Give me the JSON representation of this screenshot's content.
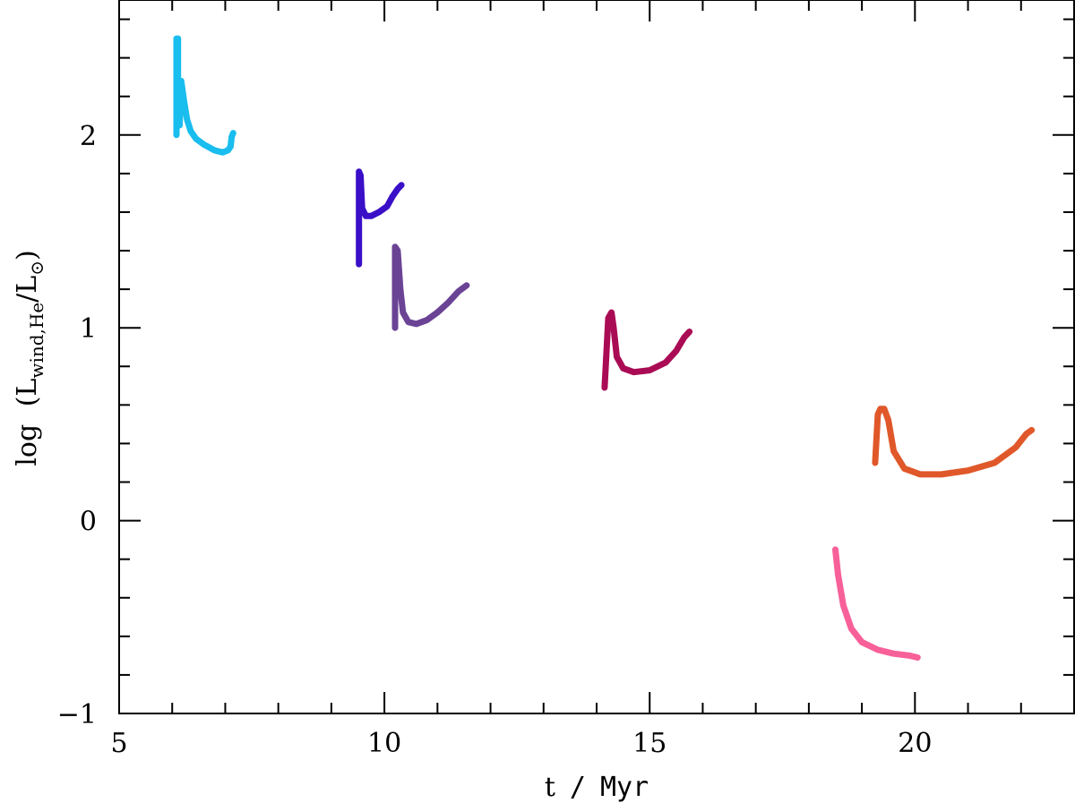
{
  "chart_data": {
    "type": "line",
    "xlabel": {
      "t": "t",
      "sep": "/",
      "unit": "Myr"
    },
    "ylabel": {
      "prefix": "log",
      "open": "(",
      "L1": "L",
      "sub1": "wind,He",
      "slash": "/",
      "L2": "L",
      "sub2": "⊙",
      "close": ")"
    },
    "xlim": [
      5,
      23
    ],
    "ylim": [
      -1,
      2.7
    ],
    "xticks_major": [
      5,
      10,
      15,
      20
    ],
    "xtick_labels": [
      "5",
      "10",
      "15",
      "20"
    ],
    "yticks_major": [
      -1,
      0,
      1,
      2
    ],
    "ytick_labels": [
      "−1",
      "0",
      "1",
      "2"
    ],
    "grid": false,
    "series": [
      {
        "color": "#19bdee",
        "x": [
          6.08,
          6.08,
          6.11,
          6.11,
          6.14,
          6.17,
          6.22,
          6.28,
          6.35,
          6.45,
          6.6,
          6.8,
          6.95,
          7.05,
          7.1,
          7.12,
          7.15
        ],
        "y": [
          2.0,
          2.5,
          2.5,
          2.15,
          2.05,
          2.28,
          2.18,
          2.08,
          2.02,
          1.98,
          1.95,
          1.92,
          1.91,
          1.92,
          1.94,
          1.99,
          2.01
        ]
      },
      {
        "color": "#3a0fc8",
        "x": [
          9.52,
          9.52,
          9.55,
          9.58,
          9.65,
          9.75,
          9.9,
          10.05,
          10.15,
          10.25,
          10.32
        ],
        "y": [
          1.33,
          1.81,
          1.79,
          1.62,
          1.58,
          1.58,
          1.6,
          1.63,
          1.68,
          1.72,
          1.74
        ]
      },
      {
        "color": "#6a4395",
        "x": [
          10.2,
          10.2,
          10.25,
          10.3,
          10.35,
          10.45,
          10.6,
          10.8,
          11.0,
          11.2,
          11.4,
          11.55
        ],
        "y": [
          1.0,
          1.42,
          1.4,
          1.2,
          1.08,
          1.03,
          1.02,
          1.04,
          1.08,
          1.13,
          1.19,
          1.22
        ]
      },
      {
        "color": "#aa0b55",
        "x": [
          14.15,
          14.22,
          14.28,
          14.32,
          14.38,
          14.5,
          14.7,
          15.0,
          15.3,
          15.5,
          15.65,
          15.75
        ],
        "y": [
          0.69,
          1.05,
          1.08,
          1.0,
          0.85,
          0.79,
          0.77,
          0.78,
          0.82,
          0.88,
          0.95,
          0.98
        ]
      },
      {
        "color": "#e0582a",
        "x": [
          19.25,
          19.3,
          19.35,
          19.42,
          19.5,
          19.6,
          19.8,
          20.1,
          20.5,
          21.0,
          21.5,
          21.9,
          22.1,
          22.2
        ],
        "y": [
          0.3,
          0.55,
          0.58,
          0.58,
          0.52,
          0.36,
          0.27,
          0.24,
          0.24,
          0.26,
          0.3,
          0.38,
          0.45,
          0.47
        ]
      },
      {
        "color": "#f8609a",
        "x": [
          18.5,
          18.55,
          18.65,
          18.8,
          19.0,
          19.3,
          19.6,
          19.9,
          20.05
        ],
        "y": [
          -0.15,
          -0.28,
          -0.44,
          -0.56,
          -0.63,
          -0.67,
          -0.69,
          -0.7,
          -0.71
        ]
      }
    ]
  }
}
